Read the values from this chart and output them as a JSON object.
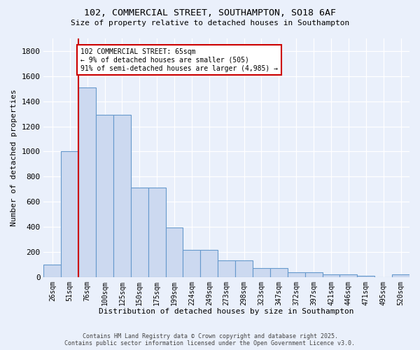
{
  "title1": "102, COMMERCIAL STREET, SOUTHAMPTON, SO18 6AF",
  "title2": "Size of property relative to detached houses in Southampton",
  "xlabel": "Distribution of detached houses by size in Southampton",
  "ylabel": "Number of detached properties",
  "categories": [
    "26sqm",
    "51sqm",
    "76sqm",
    "100sqm",
    "125sqm",
    "150sqm",
    "175sqm",
    "199sqm",
    "224sqm",
    "249sqm",
    "273sqm",
    "298sqm",
    "323sqm",
    "347sqm",
    "372sqm",
    "397sqm",
    "421sqm",
    "446sqm",
    "471sqm",
    "495sqm",
    "520sqm"
  ],
  "values": [
    100,
    1000,
    1510,
    1290,
    1290,
    710,
    710,
    395,
    215,
    215,
    130,
    130,
    70,
    70,
    35,
    35,
    18,
    18,
    10,
    0,
    18
  ],
  "bar_color": "#ccd9f0",
  "bar_edge_color": "#6699cc",
  "vline_x": 1.5,
  "vline_color": "#cc0000",
  "annotation_title": "102 COMMERCIAL STREET: 65sqm",
  "annotation_line1": "← 9% of detached houses are smaller (505)",
  "annotation_line2": "91% of semi-detached houses are larger (4,985) →",
  "annotation_box_color": "#ffffff",
  "annotation_box_edge": "#cc0000",
  "footer1": "Contains HM Land Registry data © Crown copyright and database right 2025.",
  "footer2": "Contains public sector information licensed under the Open Government Licence v3.0.",
  "bg_color": "#eaf0fb",
  "ylim": [
    0,
    1900
  ],
  "yticks": [
    0,
    200,
    400,
    600,
    800,
    1000,
    1200,
    1400,
    1600,
    1800
  ]
}
